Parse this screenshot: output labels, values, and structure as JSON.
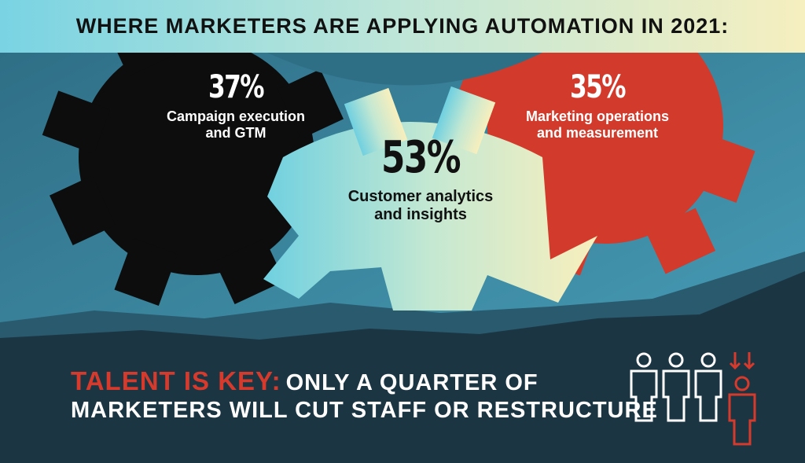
{
  "header": {
    "title": "WHERE MARKETERS ARE APPLYING AUTOMATION IN 2021:"
  },
  "stats": [
    {
      "percent": "37%",
      "line1": "Campaign execution",
      "line2": "and GTM",
      "color": "#0d0d0d"
    },
    {
      "percent": "53%",
      "line1": "Customer analytics",
      "line2": "and insights",
      "color": "#a8dcd3"
    },
    {
      "percent": "35%",
      "line1": "Marketing operations",
      "line2": "and measurement",
      "color": "#d23a2b"
    }
  ],
  "footer": {
    "accent": "TALENT IS KEY:",
    "line1_rest": "ONLY A QUARTER OF",
    "line2": "MARKETERS WILL CUT STAFF OR RESTRUCTURE"
  },
  "icons": [
    "person-icon",
    "person-icon",
    "person-icon",
    "person-highlight-icon",
    "down-arrows-icon"
  ],
  "colors": {
    "accent_red": "#d63a2c",
    "sky": "#3f8fa8",
    "ground": "#1b3543",
    "header_start": "#79d3e3",
    "header_end": "#f6efbf"
  }
}
